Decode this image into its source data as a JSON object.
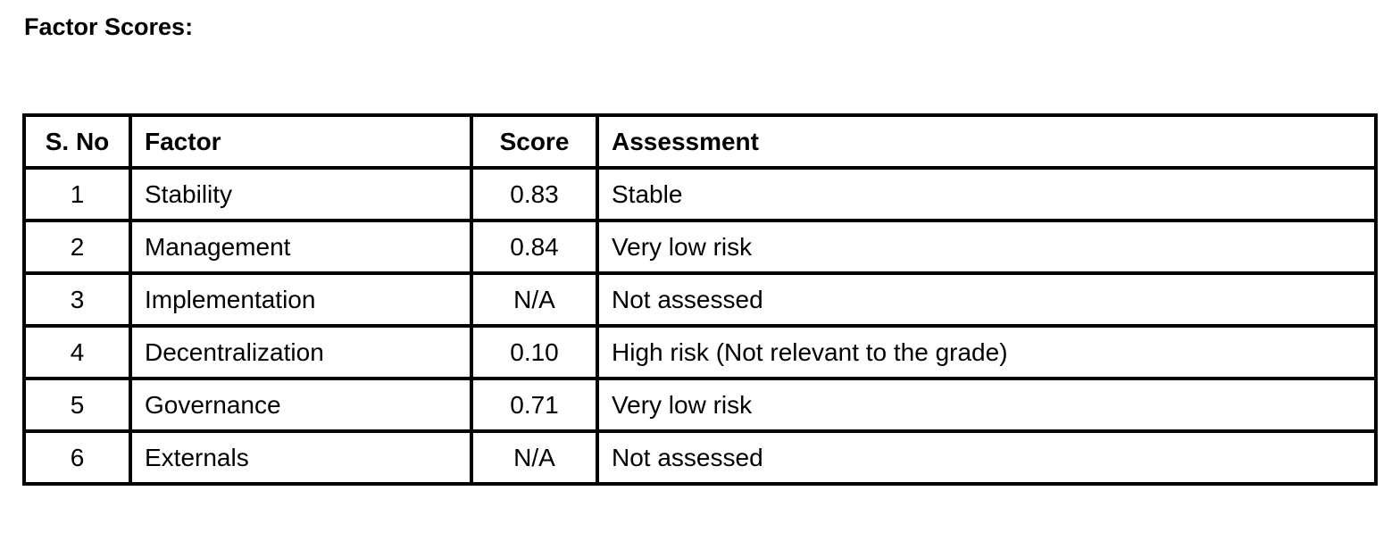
{
  "document": {
    "heading": "Factor Scores:"
  },
  "table": {
    "headers": {
      "sno": "S. No",
      "factor": "Factor",
      "score": "Score",
      "assessment": "Assessment"
    },
    "rows": [
      {
        "sno": "1",
        "factor": "Stability",
        "score": "0.83",
        "assessment": "Stable"
      },
      {
        "sno": "2",
        "factor": "Management",
        "score": "0.84",
        "assessment": "Very low risk"
      },
      {
        "sno": "3",
        "factor": "Implementation",
        "score": "N/A",
        "assessment": "Not assessed"
      },
      {
        "sno": "4",
        "factor": "Decentralization",
        "score": "0.10",
        "assessment": "High risk (Not relevant to the grade)"
      },
      {
        "sno": "5",
        "factor": "Governance",
        "score": "0.71",
        "assessment": "Very low risk"
      },
      {
        "sno": "6",
        "factor": "Externals",
        "score": "N/A",
        "assessment": "Not assessed"
      }
    ]
  }
}
